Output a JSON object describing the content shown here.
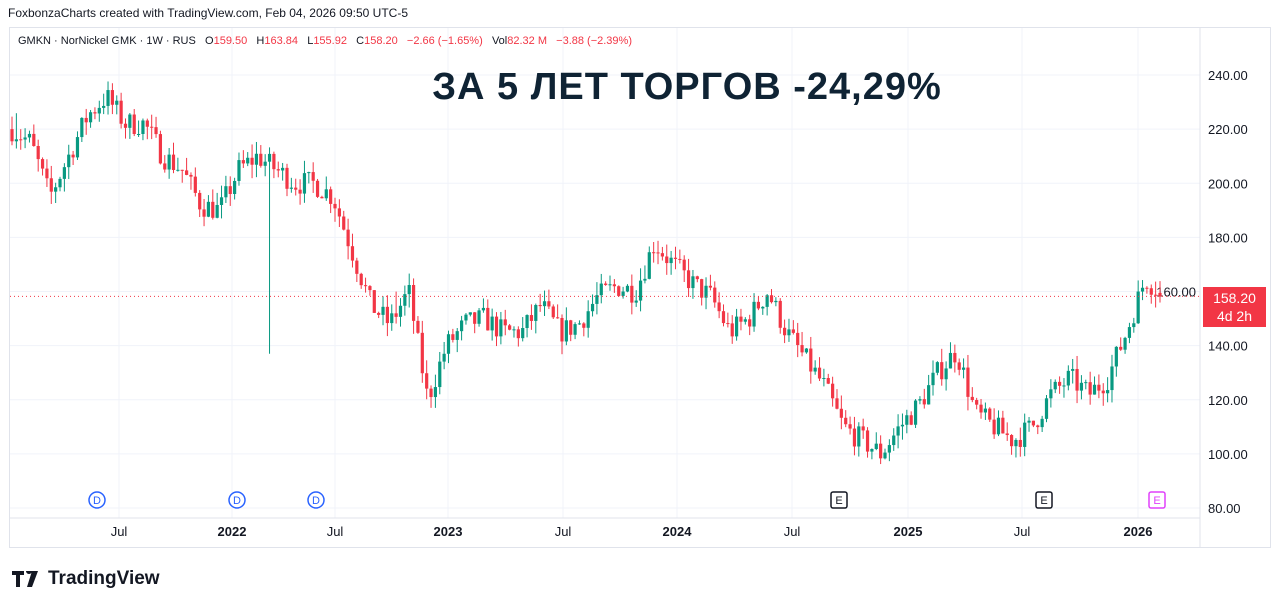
{
  "credit": "FoxbonzaCharts created with TradingView.com, Feb 04, 2026 09:50 UTC-5",
  "legend": {
    "symbol": "GMKN · NorNickel GMK · 1W · RUS",
    "o_label": "O",
    "o": "159.50",
    "h_label": "H",
    "h": "163.84",
    "l_label": "L",
    "l": "155.92",
    "c_label": "C",
    "c": "158.20",
    "change": "−2.66 (−1.65%)",
    "vol_label": "Vol",
    "vol": "82.32 M",
    "vol_change": "−3.88 (−2.39%)"
  },
  "badge": {
    "price": "158.20",
    "countdown": "4d 2h"
  },
  "logo": "TradingView",
  "colors": {
    "up": "#089981",
    "down": "#f23645",
    "event_d": "#2962ff",
    "event_e": "#131722",
    "event_e_next": "#e040fb"
  },
  "chart_data": {
    "type": "candlestick",
    "title": "ЗА 5 ЛЕТ ТОРГОВ -24,29%",
    "interval": "1W",
    "ylim": [
      80,
      240
    ],
    "y_ticks": [
      "240.00",
      "220.00",
      "200.00",
      "180.00",
      "160.00",
      "140.00",
      "120.00",
      "100.00",
      "80.00"
    ],
    "x_ticks": [
      {
        "label": "Jul",
        "bold": false
      },
      {
        "label": "2022",
        "bold": true
      },
      {
        "label": "Jul",
        "bold": false
      },
      {
        "label": "2023",
        "bold": true
      },
      {
        "label": "Jul",
        "bold": false
      },
      {
        "label": "2024",
        "bold": true
      },
      {
        "label": "Jul",
        "bold": false
      },
      {
        "label": "2025",
        "bold": true
      },
      {
        "label": "Jul",
        "bold": false
      },
      {
        "label": "2026",
        "bold": true
      }
    ],
    "monthly_close_keypoints": [
      220,
      215,
      195,
      210,
      225,
      232,
      222,
      222,
      210,
      205,
      192,
      190,
      205,
      210,
      205,
      200,
      200,
      195,
      175,
      155,
      148,
      160,
      120,
      140,
      148,
      150,
      145,
      145,
      155,
      145,
      148,
      158,
      162,
      160,
      178,
      170,
      163,
      158,
      145,
      150,
      160,
      145,
      135,
      125,
      110,
      105,
      100,
      110,
      118,
      130,
      138,
      115,
      110,
      105,
      110,
      122,
      128,
      122,
      128,
      145,
      165,
      158.2
    ],
    "last_close": 158.2,
    "events": [
      {
        "type": "D",
        "label": "D"
      },
      {
        "type": "D",
        "label": "D"
      },
      {
        "type": "D",
        "label": "D"
      },
      {
        "type": "E",
        "label": "E"
      },
      {
        "type": "E",
        "label": "E"
      },
      {
        "type": "E_next",
        "label": "E"
      }
    ]
  }
}
